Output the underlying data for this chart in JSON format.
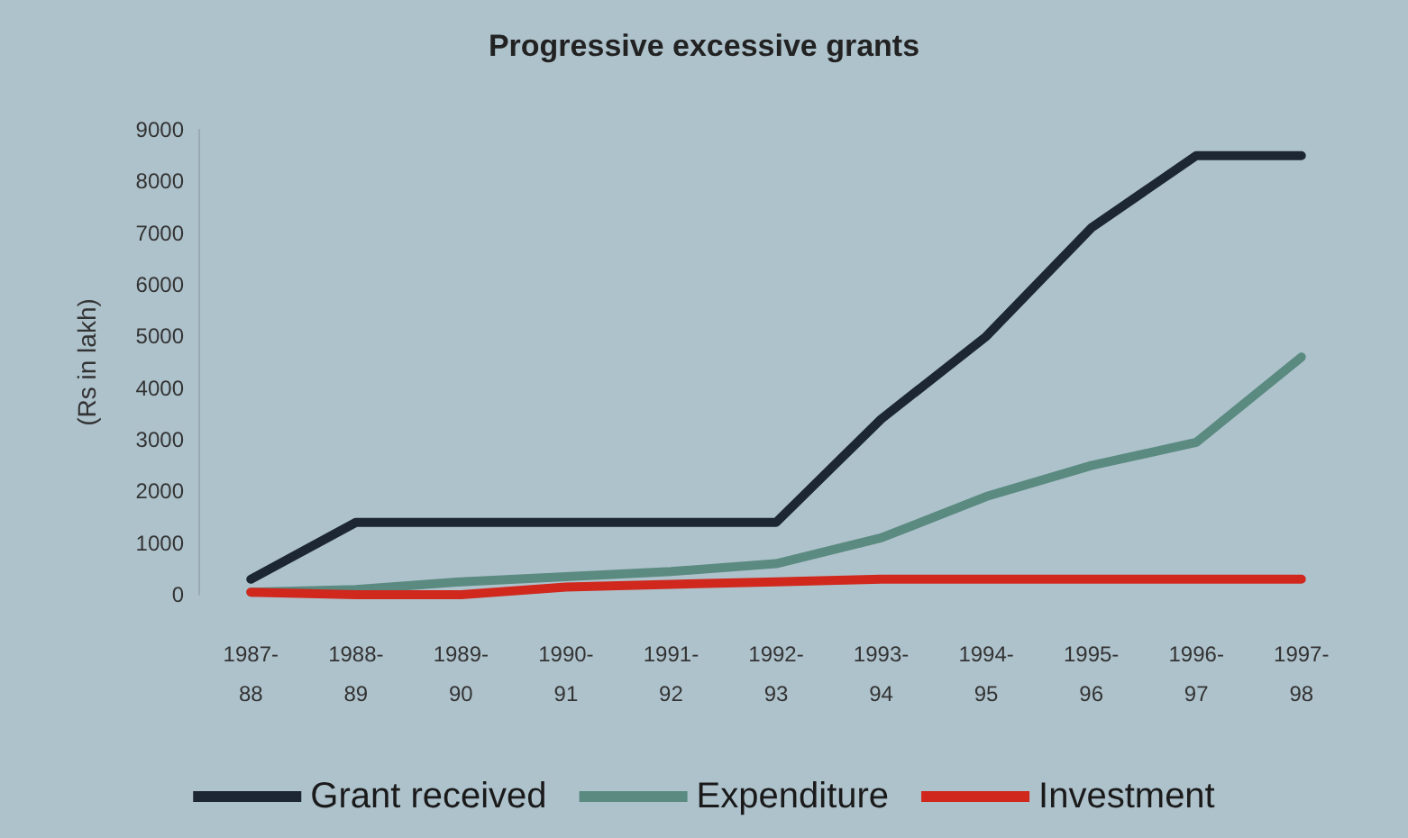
{
  "chart_data": {
    "type": "line",
    "title": "Progressive excessive grants",
    "ylabel": "(Rs in lakh)",
    "categories": [
      "1987-\n88",
      "1988-\n89",
      "1989-\n90",
      "1990-\n91",
      "1991-\n92",
      "1992-\n93",
      "1993-\n94",
      "1994-\n95",
      "1995-\n96",
      "1996-\n97",
      "1997-\n98"
    ],
    "series": [
      {
        "name": "Grant received",
        "color": "#1c2733",
        "values": [
          300,
          1400,
          1400,
          1400,
          1400,
          1400,
          3400,
          5000,
          7100,
          8500,
          8500
        ]
      },
      {
        "name": "Expenditure",
        "color": "#5a8a80",
        "values": [
          50,
          100,
          250,
          350,
          450,
          600,
          1100,
          1900,
          2500,
          2950,
          4600
        ]
      },
      {
        "name": "Investment",
        "color": "#d0281c",
        "values": [
          50,
          0,
          0,
          150,
          200,
          250,
          300,
          300,
          300,
          300,
          300
        ]
      }
    ],
    "ylim": [
      0,
      9000
    ],
    "yticks": [
      0,
      1000,
      2000,
      3000,
      4000,
      5000,
      6000,
      7000,
      8000,
      9000
    ],
    "grid": false,
    "legend": "bottom",
    "marker": "none",
    "line_style": "solid"
  }
}
